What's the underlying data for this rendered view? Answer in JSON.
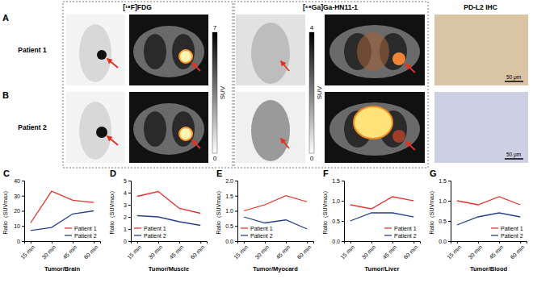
{
  "images": {
    "rows": [
      {
        "panel": "A",
        "label": "Patient 1"
      },
      {
        "panel": "B",
        "label": "Patient 2"
      }
    ],
    "columns": [
      {
        "title": "[¹⁸F]FDG",
        "colorbar": {
          "range": [
            0,
            7
          ],
          "ticks": [
            0,
            7
          ],
          "label": "SUV"
        }
      },
      {
        "title": "[⁶⁸Ga]Ga-HN11-1",
        "colorbar": {
          "range": [
            0,
            4
          ],
          "ticks": [
            0,
            4
          ],
          "label": "SUV"
        }
      },
      {
        "title": "PD-L2 IHC",
        "scale_bars": [
          "50 μm",
          "50 μm"
        ]
      }
    ]
  },
  "chart_data": [
    {
      "type": "line",
      "title": "C",
      "x_label": "Tumor/Brain",
      "y_label": "Ratio（SUVmax）",
      "categories": [
        "15 min",
        "30 min",
        "45 min",
        "60 min"
      ],
      "series": [
        {
          "name": "Patient 1",
          "color": "#e8322b",
          "values": [
            12,
            33,
            27,
            25.5
          ]
        },
        {
          "name": "Patient 2",
          "color": "#243f8f",
          "values": [
            7,
            9,
            18,
            20
          ]
        }
      ],
      "ylim": [
        0,
        40
      ],
      "yticks": [
        0,
        10,
        20,
        30,
        40
      ],
      "legend": "lower right"
    },
    {
      "type": "line",
      "title": "D",
      "x_label": "Tumor/Muscle",
      "y_label": "Ratio（SUVmax）",
      "categories": [
        "15 min",
        "30 min",
        "45 min",
        "60 min"
      ],
      "series": [
        {
          "name": "Patient 1",
          "color": "#e8322b",
          "values": [
            3.7,
            4.1,
            2.7,
            2.3
          ]
        },
        {
          "name": "Patient 2",
          "color": "#243f8f",
          "values": [
            2.1,
            2.0,
            1.6,
            1.3
          ]
        }
      ],
      "ylim": [
        0,
        5
      ],
      "yticks": [
        0,
        1,
        2,
        3,
        4,
        5
      ],
      "legend": "lower left"
    },
    {
      "type": "line",
      "title": "E",
      "x_label": "Tumor/Myocard",
      "y_label": "Ratio（SUVmax）",
      "categories": [
        "15 min",
        "30 min",
        "45 min",
        "60 min"
      ],
      "series": [
        {
          "name": "Patient 1",
          "color": "#e8322b",
          "values": [
            1.0,
            1.2,
            1.5,
            1.3
          ]
        },
        {
          "name": "Patient 2",
          "color": "#243f8f",
          "values": [
            0.8,
            0.6,
            0.7,
            0.4
          ]
        }
      ],
      "ylim": [
        0,
        2
      ],
      "yticks": [
        {
          "value": 0,
          "label": "0.0"
        },
        0.5,
        {
          "value": 1,
          "label": "1.0"
        },
        1.5,
        {
          "value": 2,
          "label": "2.0"
        }
      ],
      "legend": "lower left"
    },
    {
      "type": "line",
      "title": "F",
      "x_label": "Tumor/Liver",
      "y_label": "Ratio（SUVmax）",
      "categories": [
        "15 min",
        "30 min",
        "45 min",
        "60 min"
      ],
      "series": [
        {
          "name": "Patient 1",
          "color": "#e8322b",
          "values": [
            0.9,
            0.8,
            1.1,
            1.0
          ]
        },
        {
          "name": "Patient 2",
          "color": "#243f8f",
          "values": [
            0.5,
            0.7,
            0.7,
            0.6
          ]
        }
      ],
      "ylim": [
        0,
        1.5
      ],
      "yticks": [
        {
          "value": 0,
          "label": "0.0"
        },
        0.5,
        {
          "value": 1,
          "label": "1.0"
        },
        1.5
      ],
      "legend": "lower right"
    },
    {
      "type": "line",
      "title": "G",
      "x_label": "Tumor/Blood",
      "y_label": "Ratio（SUVmax）",
      "categories": [
        "15 min",
        "30 min",
        "45 min",
        "60 min"
      ],
      "series": [
        {
          "name": "Patient 1",
          "color": "#e8322b",
          "values": [
            1.0,
            0.9,
            1.1,
            0.9
          ]
        },
        {
          "name": "Patient 2",
          "color": "#243f8f",
          "values": [
            0.4,
            0.6,
            0.7,
            0.6
          ]
        }
      ],
      "ylim": [
        0,
        1.5
      ],
      "yticks": [
        {
          "value": 0,
          "label": "0.0"
        },
        0.5,
        {
          "value": 1,
          "label": "1.0"
        },
        1.5
      ],
      "legend": "lower right"
    }
  ]
}
